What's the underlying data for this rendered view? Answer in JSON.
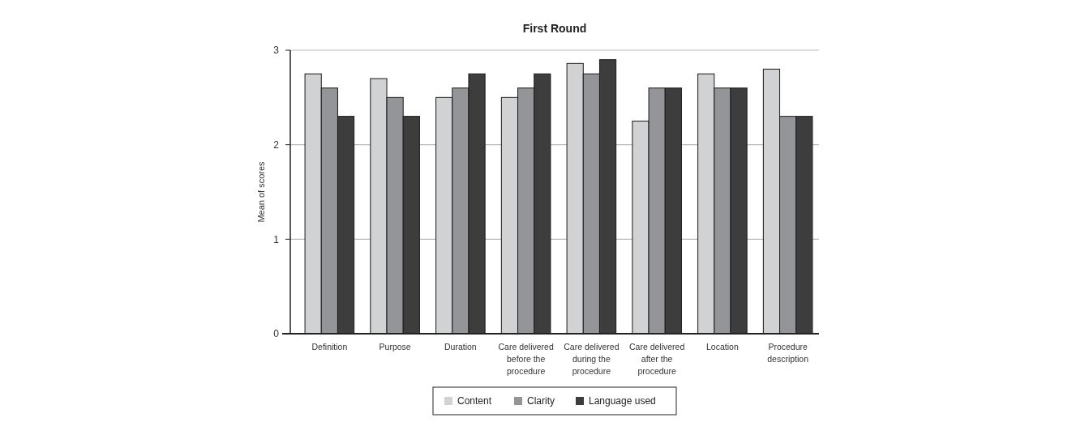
{
  "chart_data": {
    "type": "bar",
    "title": "First Round",
    "ylabel": "Mean of scores",
    "categories": [
      "Definition",
      "Purpose",
      "Duration",
      "Care delivered before the procedure",
      "Care delivered during the procedure",
      "Care delivered after the procedure",
      "Location",
      "Procedure description"
    ],
    "series": [
      {
        "name": "Content",
        "color": "#d1d2d4",
        "values": [
          2.75,
          2.7,
          2.5,
          2.5,
          2.86,
          2.25,
          2.75,
          2.8
        ]
      },
      {
        "name": "Clarity",
        "color": "#939598",
        "values": [
          2.6,
          2.5,
          2.6,
          2.6,
          2.75,
          2.6,
          2.6,
          2.3
        ]
      },
      {
        "name": "Language used",
        "color": "#3d3d3d",
        "values": [
          2.3,
          2.3,
          2.75,
          2.75,
          2.9,
          2.6,
          2.6,
          2.3
        ]
      }
    ],
    "ylim": [
      0,
      3
    ],
    "yticks": [
      0,
      1,
      2,
      3
    ],
    "grid": "y",
    "legend": "bottom"
  }
}
